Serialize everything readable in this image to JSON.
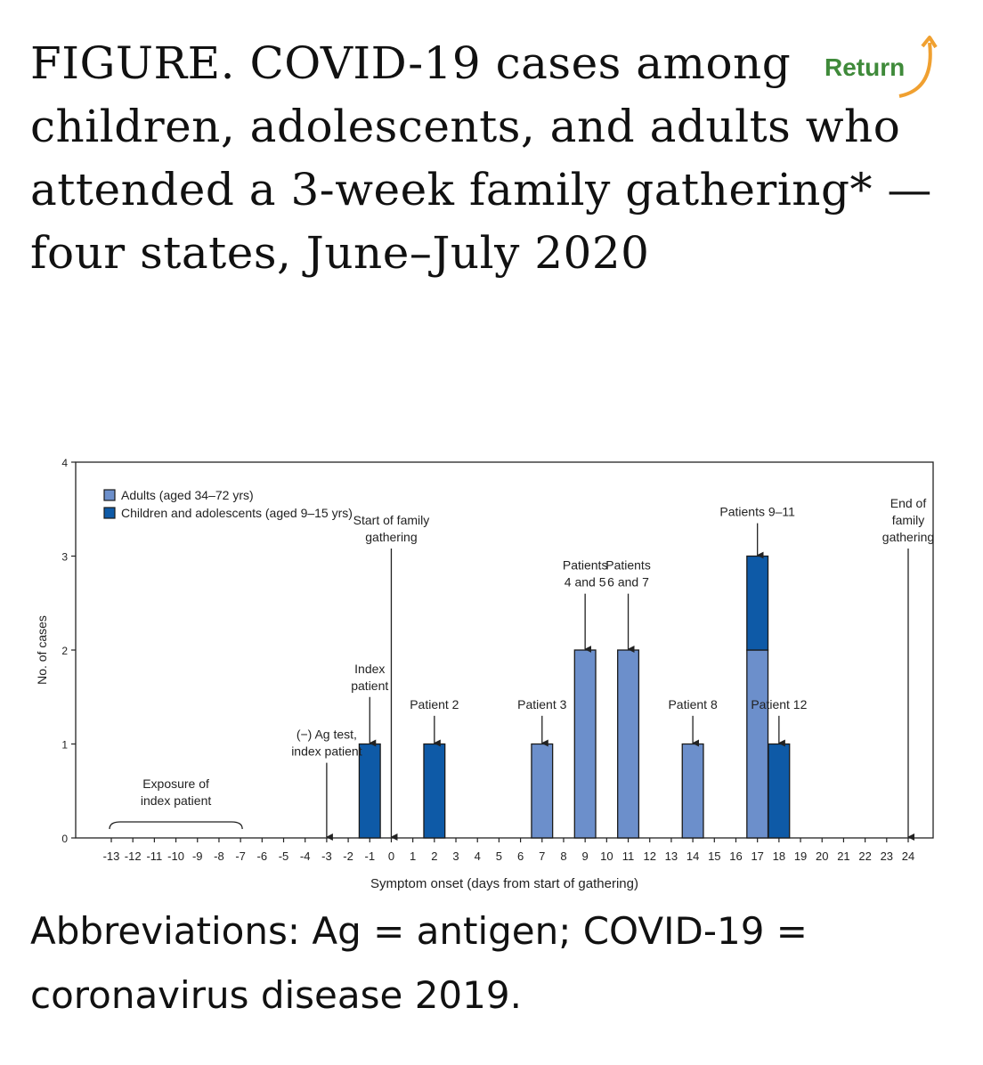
{
  "figure": {
    "title": "FIGURE. COVID-19 cases among children, adolescents, and adults who attended a 3-week family gathering* — four states, June–July 2020"
  },
  "return_button": {
    "label": "Return",
    "icon": "curved-arrow-icon",
    "color": "#3f8a3a",
    "arrow_color": "#f0a030"
  },
  "footnote": {
    "text": "Abbreviations: Ag = antigen; COVID-19 = coronavirus disease 2019."
  },
  "chart_data": {
    "type": "bar",
    "stacked": true,
    "xlabel": "Symptom onset (days from start of gathering)",
    "ylabel": "No. of cases",
    "xlim": [
      -13,
      24
    ],
    "ylim": [
      0,
      4
    ],
    "y_ticks": [
      0,
      1,
      2,
      3,
      4
    ],
    "x_ticks": [
      -13,
      -12,
      -11,
      -10,
      -9,
      -8,
      -7,
      -6,
      -5,
      -4,
      -3,
      -2,
      -1,
      0,
      1,
      2,
      3,
      4,
      5,
      6,
      7,
      8,
      9,
      10,
      11,
      12,
      13,
      14,
      15,
      16,
      17,
      18,
      19,
      20,
      21,
      22,
      23,
      24
    ],
    "legend": {
      "placement": "top-left",
      "items": [
        {
          "label": "Adults (aged 34–72 yrs)",
          "color": "#6c8fcb"
        },
        {
          "label": "Children and adolescents (aged 9–15 yrs)",
          "color": "#0e5aa7"
        }
      ]
    },
    "series": [
      {
        "name": "Adults (aged 34–72 yrs)",
        "color": "#6c8fcb",
        "points": [
          {
            "x": 7,
            "y": 1
          },
          {
            "x": 9,
            "y": 2
          },
          {
            "x": 11,
            "y": 2
          },
          {
            "x": 14,
            "y": 1
          },
          {
            "x": 17,
            "y": 2
          }
        ]
      },
      {
        "name": "Children and adolescents (aged 9–15 yrs)",
        "color": "#0e5aa7",
        "points": [
          {
            "x": -1,
            "y": 1
          },
          {
            "x": 2,
            "y": 1
          },
          {
            "x": 17,
            "y": 1
          },
          {
            "x": 18,
            "y": 1
          }
        ]
      }
    ],
    "annotations": [
      {
        "lines": [
          "(−) Ag test,",
          "index patient"
        ],
        "x": -3,
        "arrow_to": 0,
        "arrow_from": 0.8
      },
      {
        "lines": [
          "Index",
          "patient"
        ],
        "x": -1,
        "arrow_to": 1,
        "arrow_from": 1.5
      },
      {
        "lines": [
          "Start of family",
          "gathering"
        ],
        "x": 0,
        "arrow_to": 0,
        "arrow_from": 3.08
      },
      {
        "lines": [
          "Patient 2"
        ],
        "x": 2,
        "arrow_to": 1,
        "arrow_from": 1.3
      },
      {
        "lines": [
          "Patient 3"
        ],
        "x": 7,
        "arrow_to": 1,
        "arrow_from": 1.3
      },
      {
        "lines": [
          "Patients",
          "4 and 5"
        ],
        "x": 9,
        "arrow_to": 2,
        "arrow_from": 2.6
      },
      {
        "lines": [
          "Patients",
          "6 and 7"
        ],
        "x": 11,
        "arrow_to": 2,
        "arrow_from": 2.6
      },
      {
        "lines": [
          "Patient 8"
        ],
        "x": 14,
        "arrow_to": 1,
        "arrow_from": 1.3
      },
      {
        "lines": [
          "Patients 9–11"
        ],
        "x": 17,
        "arrow_to": 3,
        "arrow_from": 3.35
      },
      {
        "lines": [
          "Patient 12"
        ],
        "x": 18,
        "arrow_to": 1,
        "arrow_from": 1.3
      },
      {
        "lines": [
          "End of",
          "family",
          "gathering"
        ],
        "x": 24,
        "arrow_to": 0,
        "arrow_from": 3.08
      }
    ],
    "bracket": {
      "lines": [
        "Exposure of",
        "index patient"
      ],
      "from": -13,
      "to": -7
    }
  }
}
